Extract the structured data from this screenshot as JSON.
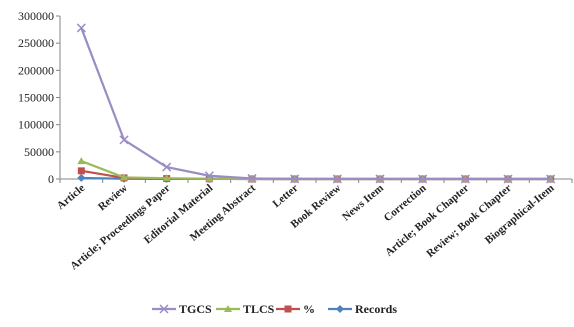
{
  "chart_data": {
    "type": "line",
    "title": "",
    "xlabel": "",
    "ylabel": "",
    "ylim": [
      0,
      300000
    ],
    "yticks": [
      0,
      50000,
      100000,
      150000,
      200000,
      250000,
      300000
    ],
    "ytick_labels": [
      "0",
      "50000",
      "100000",
      "150000",
      "200000",
      "250000",
      "300000"
    ],
    "grid": false,
    "legend_position": "bottom",
    "categories": [
      "Article",
      "Review",
      "Article; Proceedings Paper",
      "Editorial Material",
      "Meeting Abstract",
      "Letter",
      "Book Review",
      "News Item",
      "Correction",
      "Article; Book Chapter",
      "Review; Book Chapter",
      "Biographical-Item"
    ],
    "series": [
      {
        "name": "TGCS",
        "color": "#9b8cc4",
        "marker": "x",
        "values": [
          278000,
          72000,
          22000,
          6000,
          1000,
          200,
          100,
          80,
          50,
          40,
          30,
          20
        ]
      },
      {
        "name": "TLCS",
        "color": "#9bbb59",
        "marker": "triangle",
        "values": [
          33000,
          3000,
          1500,
          500,
          100,
          30,
          20,
          10,
          10,
          5,
          5,
          5
        ]
      },
      {
        "name": "%",
        "color": "#c0504d",
        "marker": "square",
        "values": [
          15000,
          2000,
          800,
          300,
          50,
          20,
          10,
          5,
          5,
          2,
          2,
          1
        ]
      },
      {
        "name": "Records",
        "color": "#4f81bd",
        "marker": "diamond",
        "values": [
          2000,
          500,
          200,
          100,
          50,
          20,
          10,
          5,
          5,
          2,
          2,
          1
        ]
      }
    ]
  }
}
